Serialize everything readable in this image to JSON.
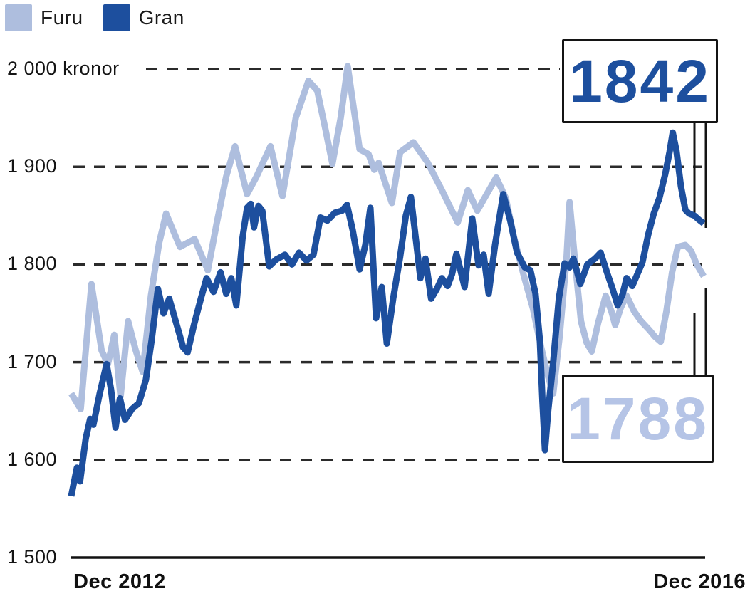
{
  "chart_data": {
    "type": "line",
    "title": "",
    "ylabel": "kronor",
    "ylim": [
      1500,
      2000
    ],
    "grid": "horizontal-dashed",
    "legend_position": "top-left",
    "x_range_labels": [
      "Dec 2012",
      "Dec 2016"
    ],
    "y_ticks": [
      {
        "label": "2 000 kronor",
        "value": 2000
      },
      {
        "label": "1 900",
        "value": 1900
      },
      {
        "label": "1 800",
        "value": 1800
      },
      {
        "label": "1 700",
        "value": 1700
      },
      {
        "label": "1 600",
        "value": 1600
      },
      {
        "label": "1 500",
        "value": 1500
      }
    ],
    "series": [
      {
        "name": "Furu",
        "color": "#aebede",
        "end_value": 1788,
        "points": [
          [
            0.0,
            1668
          ],
          [
            0.015,
            1652
          ],
          [
            0.032,
            1780
          ],
          [
            0.048,
            1712
          ],
          [
            0.058,
            1698
          ],
          [
            0.068,
            1728
          ],
          [
            0.078,
            1665
          ],
          [
            0.09,
            1742
          ],
          [
            0.102,
            1712
          ],
          [
            0.113,
            1690
          ],
          [
            0.126,
            1768
          ],
          [
            0.139,
            1822
          ],
          [
            0.15,
            1852
          ],
          [
            0.172,
            1818
          ],
          [
            0.195,
            1826
          ],
          [
            0.216,
            1794
          ],
          [
            0.23,
            1842
          ],
          [
            0.245,
            1890
          ],
          [
            0.259,
            1921
          ],
          [
            0.278,
            1872
          ],
          [
            0.293,
            1890
          ],
          [
            0.315,
            1921
          ],
          [
            0.334,
            1870
          ],
          [
            0.355,
            1950
          ],
          [
            0.375,
            1988
          ],
          [
            0.389,
            1978
          ],
          [
            0.402,
            1938
          ],
          [
            0.413,
            1903
          ],
          [
            0.426,
            1950
          ],
          [
            0.437,
            2003
          ],
          [
            0.456,
            1918
          ],
          [
            0.47,
            1913
          ],
          [
            0.479,
            1897
          ],
          [
            0.486,
            1904
          ],
          [
            0.507,
            1863
          ],
          [
            0.52,
            1915
          ],
          [
            0.541,
            1925
          ],
          [
            0.563,
            1905
          ],
          [
            0.586,
            1876
          ],
          [
            0.611,
            1843
          ],
          [
            0.627,
            1876
          ],
          [
            0.642,
            1855
          ],
          [
            0.657,
            1872
          ],
          [
            0.672,
            1889
          ],
          [
            0.687,
            1868
          ],
          [
            0.7,
            1828
          ],
          [
            0.715,
            1790
          ],
          [
            0.73,
            1755
          ],
          [
            0.743,
            1715
          ],
          [
            0.754,
            1685
          ],
          [
            0.762,
            1668
          ],
          [
            0.772,
            1725
          ],
          [
            0.783,
            1805
          ],
          [
            0.788,
            1864
          ],
          [
            0.797,
            1800
          ],
          [
            0.806,
            1742
          ],
          [
            0.815,
            1720
          ],
          [
            0.823,
            1711
          ],
          [
            0.833,
            1740
          ],
          [
            0.845,
            1768
          ],
          [
            0.854,
            1752
          ],
          [
            0.86,
            1738
          ],
          [
            0.869,
            1756
          ],
          [
            0.878,
            1768
          ],
          [
            0.89,
            1752
          ],
          [
            0.901,
            1742
          ],
          [
            0.914,
            1733
          ],
          [
            0.923,
            1726
          ],
          [
            0.932,
            1721
          ],
          [
            0.941,
            1752
          ],
          [
            0.95,
            1792
          ],
          [
            0.959,
            1818
          ],
          [
            0.971,
            1820
          ],
          [
            0.98,
            1814
          ],
          [
            0.989,
            1800
          ],
          [
            1.0,
            1788
          ]
        ]
      },
      {
        "name": "Gran",
        "color": "#1d4f9e",
        "end_value": 1842,
        "points": [
          [
            0.0,
            1563
          ],
          [
            0.009,
            1592
          ],
          [
            0.014,
            1578
          ],
          [
            0.023,
            1622
          ],
          [
            0.03,
            1642
          ],
          [
            0.035,
            1636
          ],
          [
            0.045,
            1668
          ],
          [
            0.056,
            1698
          ],
          [
            0.063,
            1672
          ],
          [
            0.07,
            1633
          ],
          [
            0.077,
            1663
          ],
          [
            0.085,
            1641
          ],
          [
            0.096,
            1652
          ],
          [
            0.107,
            1658
          ],
          [
            0.118,
            1682
          ],
          [
            0.127,
            1722
          ],
          [
            0.137,
            1775
          ],
          [
            0.146,
            1750
          ],
          [
            0.155,
            1765
          ],
          [
            0.166,
            1740
          ],
          [
            0.177,
            1715
          ],
          [
            0.184,
            1710
          ],
          [
            0.194,
            1738
          ],
          [
            0.205,
            1765
          ],
          [
            0.214,
            1786
          ],
          [
            0.225,
            1772
          ],
          [
            0.236,
            1792
          ],
          [
            0.245,
            1770
          ],
          [
            0.253,
            1786
          ],
          [
            0.261,
            1758
          ],
          [
            0.271,
            1828
          ],
          [
            0.278,
            1858
          ],
          [
            0.284,
            1862
          ],
          [
            0.289,
            1838
          ],
          [
            0.296,
            1860
          ],
          [
            0.302,
            1855
          ],
          [
            0.313,
            1798
          ],
          [
            0.324,
            1805
          ],
          [
            0.338,
            1810
          ],
          [
            0.349,
            1800
          ],
          [
            0.36,
            1812
          ],
          [
            0.372,
            1804
          ],
          [
            0.383,
            1810
          ],
          [
            0.394,
            1848
          ],
          [
            0.405,
            1845
          ],
          [
            0.417,
            1853
          ],
          [
            0.428,
            1855
          ],
          [
            0.436,
            1861
          ],
          [
            0.445,
            1835
          ],
          [
            0.456,
            1795
          ],
          [
            0.465,
            1820
          ],
          [
            0.473,
            1858
          ],
          [
            0.482,
            1745
          ],
          [
            0.491,
            1777
          ],
          [
            0.499,
            1719
          ],
          [
            0.509,
            1765
          ],
          [
            0.52,
            1808
          ],
          [
            0.529,
            1850
          ],
          [
            0.537,
            1869
          ],
          [
            0.546,
            1820
          ],
          [
            0.552,
            1786
          ],
          [
            0.56,
            1806
          ],
          [
            0.569,
            1765
          ],
          [
            0.578,
            1775
          ],
          [
            0.586,
            1786
          ],
          [
            0.595,
            1778
          ],
          [
            0.602,
            1790
          ],
          [
            0.609,
            1811
          ],
          [
            0.622,
            1777
          ],
          [
            0.634,
            1847
          ],
          [
            0.644,
            1799
          ],
          [
            0.652,
            1810
          ],
          [
            0.66,
            1770
          ],
          [
            0.67,
            1820
          ],
          [
            0.683,
            1872
          ],
          [
            0.694,
            1845
          ],
          [
            0.705,
            1812
          ],
          [
            0.717,
            1797
          ],
          [
            0.726,
            1794
          ],
          [
            0.734,
            1770
          ],
          [
            0.741,
            1722
          ],
          [
            0.745,
            1660
          ],
          [
            0.749,
            1610
          ],
          [
            0.754,
            1650
          ],
          [
            0.762,
            1700
          ],
          [
            0.771,
            1765
          ],
          [
            0.78,
            1801
          ],
          [
            0.788,
            1797
          ],
          [
            0.794,
            1806
          ],
          [
            0.805,
            1780
          ],
          [
            0.816,
            1800
          ],
          [
            0.828,
            1806
          ],
          [
            0.837,
            1812
          ],
          [
            0.847,
            1792
          ],
          [
            0.856,
            1775
          ],
          [
            0.864,
            1758
          ],
          [
            0.872,
            1770
          ],
          [
            0.878,
            1786
          ],
          [
            0.887,
            1778
          ],
          [
            0.895,
            1790
          ],
          [
            0.903,
            1802
          ],
          [
            0.912,
            1830
          ],
          [
            0.921,
            1852
          ],
          [
            0.93,
            1868
          ],
          [
            0.939,
            1892
          ],
          [
            0.946,
            1915
          ],
          [
            0.951,
            1935
          ],
          [
            0.957,
            1916
          ],
          [
            0.964,
            1880
          ],
          [
            0.971,
            1856
          ],
          [
            0.977,
            1852
          ],
          [
            0.985,
            1850
          ],
          [
            0.992,
            1846
          ],
          [
            1.0,
            1842
          ]
        ]
      }
    ],
    "annotations": [
      {
        "text": "1842",
        "series": "Gran",
        "color": "#1d4f9e"
      },
      {
        "text": "1788",
        "series": "Furu",
        "color": "#b5c4e6"
      }
    ]
  }
}
